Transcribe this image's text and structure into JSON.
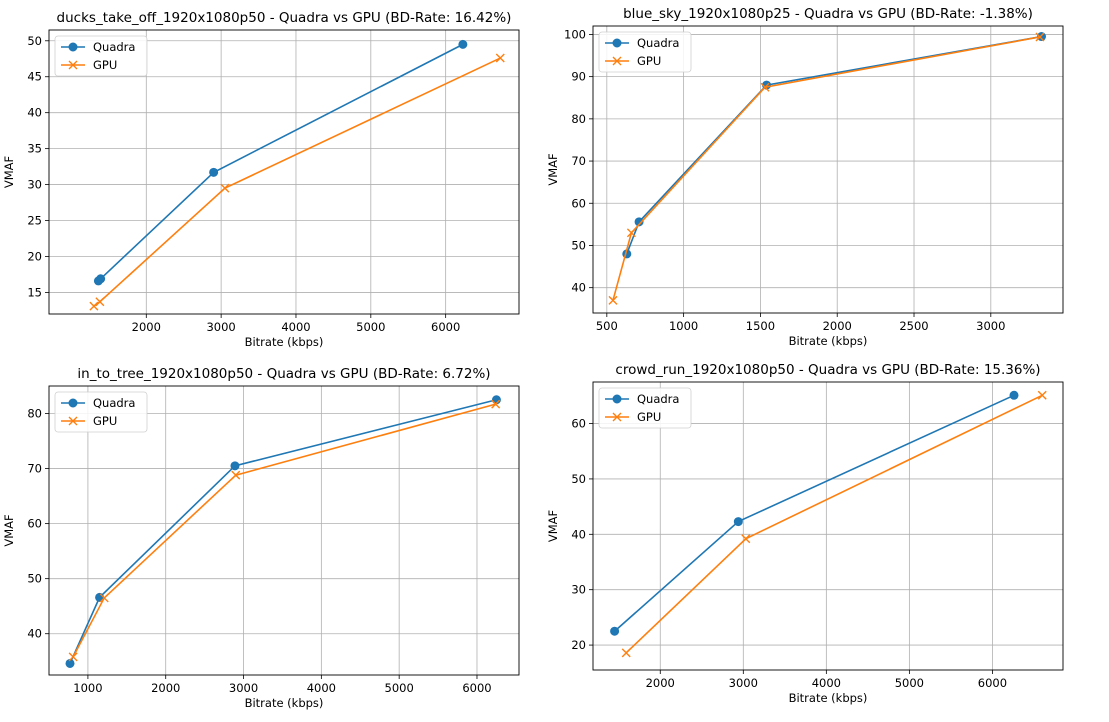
{
  "chart_data": [
    {
      "type": "line",
      "title": "ducks_take_off_1920x1080p50 - Quadra vs GPU (BD-Rate: 16.42%)",
      "xlabel": "Bitrate (kbps)",
      "ylabel": "VMAF",
      "xlim": [
        700,
        6980
      ],
      "ylim": [
        12,
        51.5
      ],
      "xticks": [
        2000,
        3000,
        4000,
        5000,
        6000
      ],
      "yticks": [
        15,
        20,
        25,
        30,
        35,
        40,
        45,
        50
      ],
      "grid": true,
      "legend_position": "upper-left",
      "series": [
        {
          "name": "Quadra",
          "color": "#1f77b4",
          "marker": "circle",
          "x": [
            1360,
            1390,
            2900,
            6230
          ],
          "y": [
            16.6,
            16.9,
            31.7,
            49.5
          ]
        },
        {
          "name": "GPU",
          "color": "#ff7f0e",
          "marker": "x",
          "x": [
            1300,
            1380,
            3050,
            6730
          ],
          "y": [
            13.1,
            13.7,
            29.5,
            47.6
          ]
        }
      ]
    },
    {
      "type": "line",
      "title": "blue_sky_1920x1080p25 - Quadra vs GPU (BD-Rate: -1.38%)",
      "xlabel": "Bitrate (kbps)",
      "ylabel": "VMAF",
      "xlim": [
        410,
        3470
      ],
      "ylim": [
        34,
        102
      ],
      "xticks": [
        500,
        1000,
        1500,
        2000,
        2500,
        3000
      ],
      "yticks": [
        40,
        50,
        60,
        70,
        80,
        90,
        100
      ],
      "grid": true,
      "legend_position": "upper-left",
      "series": [
        {
          "name": "Quadra",
          "color": "#1f77b4",
          "marker": "circle",
          "x": [
            630,
            710,
            1540,
            3330
          ],
          "y": [
            48,
            55.6,
            88,
            99.5
          ]
        },
        {
          "name": "GPU",
          "color": "#ff7f0e",
          "marker": "x",
          "x": [
            540,
            660,
            1530,
            3320
          ],
          "y": [
            37,
            53,
            87.5,
            99.4
          ]
        }
      ]
    },
    {
      "type": "line",
      "title": "in_to_tree_1920x1080p50 - Quadra vs GPU (BD-Rate: 6.72%)",
      "xlabel": "Bitrate (kbps)",
      "ylabel": "VMAF",
      "xlim": [
        500,
        6540
      ],
      "ylim": [
        32.5,
        85
      ],
      "xticks": [
        1000,
        2000,
        3000,
        4000,
        5000,
        6000
      ],
      "yticks": [
        40,
        50,
        60,
        70,
        80
      ],
      "grid": true,
      "legend_position": "upper-left",
      "series": [
        {
          "name": "Quadra",
          "color": "#1f77b4",
          "marker": "circle",
          "x": [
            770,
            1150,
            2890,
            6250
          ],
          "y": [
            34.6,
            46.6,
            70.5,
            82.5
          ]
        },
        {
          "name": "GPU",
          "color": "#ff7f0e",
          "marker": "x",
          "x": [
            810,
            1210,
            2900,
            6240
          ],
          "y": [
            35.8,
            46.5,
            68.8,
            81.7
          ]
        }
      ]
    },
    {
      "type": "line",
      "title": "crowd_run_1920x1080p50 - Quadra vs GPU (BD-Rate: 15.36%)",
      "xlabel": "Bitrate (kbps)",
      "ylabel": "VMAF",
      "xlim": [
        1190,
        6850
      ],
      "ylim": [
        15.5,
        67.5
      ],
      "xticks": [
        2000,
        3000,
        4000,
        5000,
        6000
      ],
      "yticks": [
        20,
        30,
        40,
        50,
        60
      ],
      "grid": true,
      "legend_position": "upper-left",
      "series": [
        {
          "name": "Quadra",
          "color": "#1f77b4",
          "marker": "circle",
          "x": [
            1450,
            2940,
            6260
          ],
          "y": [
            22.5,
            42.3,
            65.1
          ]
        },
        {
          "name": "GPU",
          "color": "#ff7f0e",
          "marker": "x",
          "x": [
            1590,
            3030,
            6600
          ],
          "y": [
            18.6,
            39.2,
            65.1
          ]
        }
      ]
    }
  ]
}
